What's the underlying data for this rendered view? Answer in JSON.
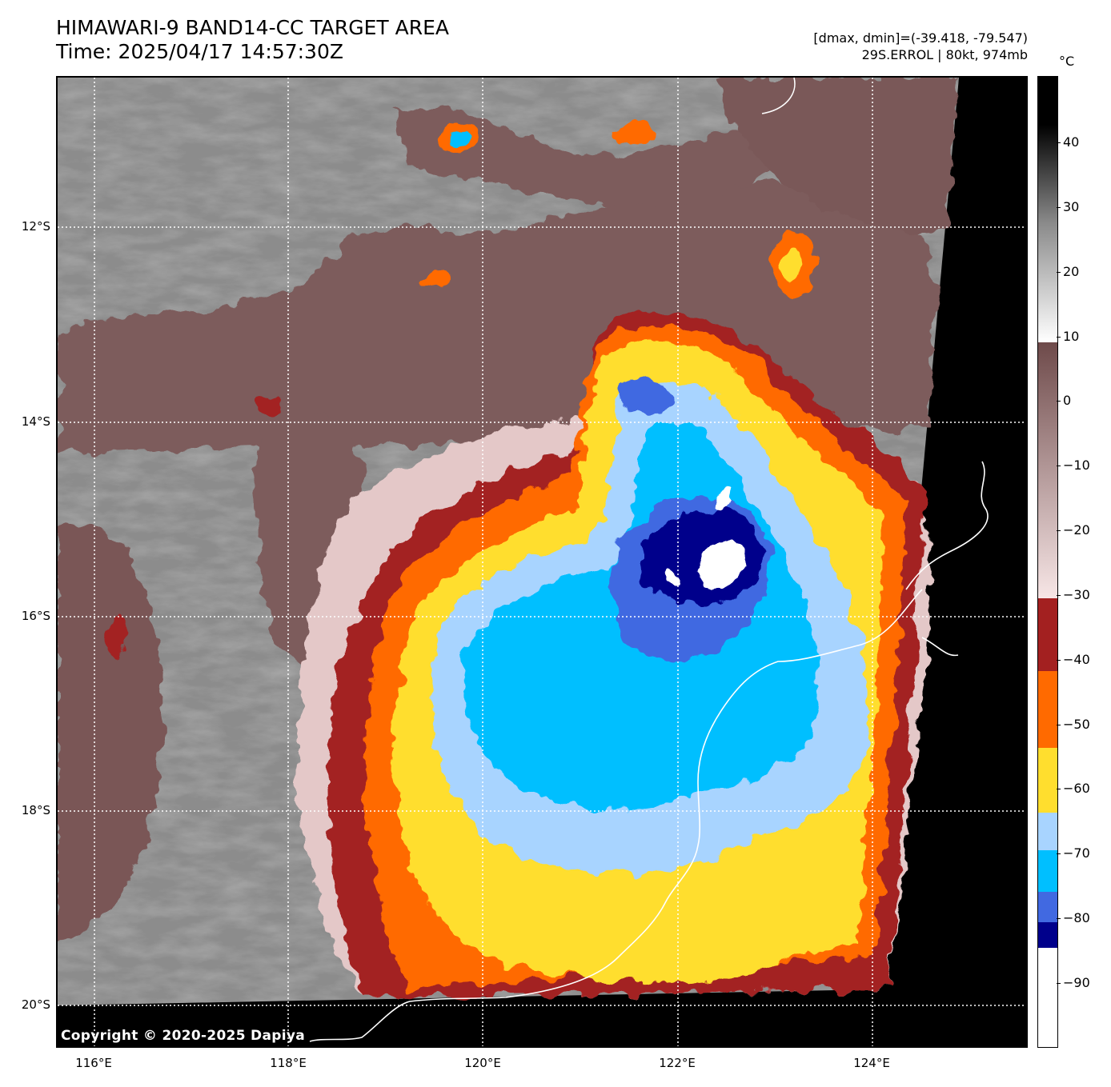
{
  "header": {
    "title_line1": "HIMAWARI-9 BAND14-CC TARGET AREA",
    "title_line2": "Time: 2025/04/17 14:57:30Z",
    "dminmax": "[dmax, dmin]=(-39.418, -79.547)",
    "storm": "29S.ERROL | 80kt, 974mb"
  },
  "map": {
    "lat_labels": [
      "12°S",
      "14°S",
      "16°S",
      "18°S",
      "20°S"
    ],
    "lon_labels": [
      "116°E",
      "118°E",
      "120°E",
      "122°E",
      "124°E"
    ],
    "copyright": "Copyright © 2020-2025 Dapiya",
    "colors": {
      "no_data": "#000000",
      "warm_gray": "#8a8a8a",
      "brown": "#7a5a5a",
      "pink": "#e8cfcf",
      "dark_red": "#a02020",
      "orange": "#ff6a00",
      "yellow": "#ffde2e",
      "light_blue": "#a8d4ff",
      "cyan": "#00bfff",
      "royal_blue": "#4169e1",
      "navy": "#00008b",
      "white": "#ffffff"
    }
  },
  "colorbar": {
    "unit": "°C",
    "ticks": [
      "40",
      "30",
      "20",
      "10",
      "0",
      "−10",
      "−20",
      "−30",
      "−40",
      "−50",
      "−60",
      "−70",
      "−80",
      "−90"
    ],
    "range": [
      -100,
      50
    ]
  }
}
